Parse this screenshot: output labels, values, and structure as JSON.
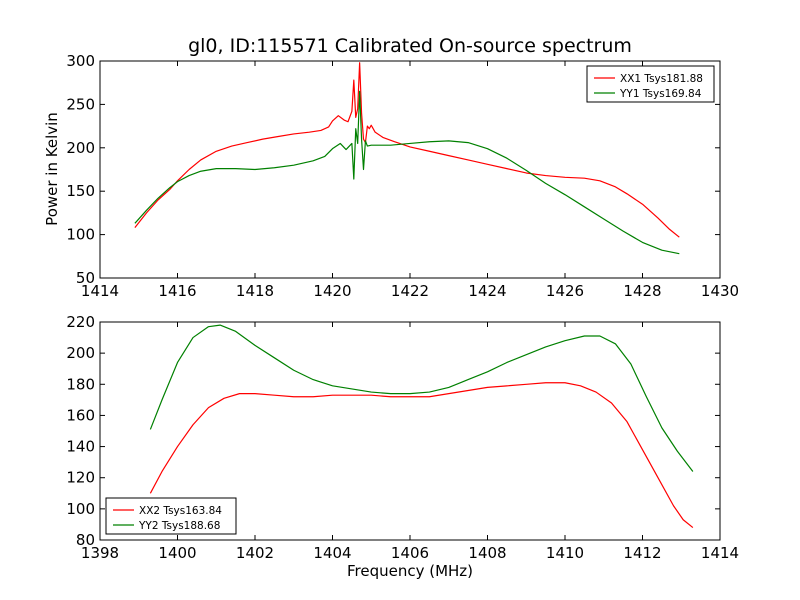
{
  "chart_data": [
    {
      "type": "line",
      "title": "gl0, ID:115571 Calibrated On-source spectrum",
      "xlabel": "",
      "ylabel": "Power in Kelvin",
      "xlim": [
        1414,
        1430
      ],
      "ylim": [
        50,
        300
      ],
      "xticks": [
        "1414",
        "1416",
        "1418",
        "1420",
        "1422",
        "1424",
        "1426",
        "1428",
        "1430"
      ],
      "yticks": [
        "50",
        "100",
        "150",
        "200",
        "250",
        "300"
      ],
      "legend_position": "top-right",
      "grid": false,
      "series": [
        {
          "name": "XX1 Tsys181.88",
          "color": "#ff0000",
          "x": [
            1414.9,
            1415.2,
            1415.5,
            1415.8,
            1416.0,
            1416.3,
            1416.6,
            1417.0,
            1417.4,
            1417.8,
            1418.2,
            1418.6,
            1419.0,
            1419.4,
            1419.7,
            1419.9,
            1420.0,
            1420.15,
            1420.3,
            1420.4,
            1420.5,
            1420.55,
            1420.6,
            1420.65,
            1420.7,
            1420.75,
            1420.8,
            1420.85,
            1420.9,
            1420.95,
            1421.0,
            1421.1,
            1421.3,
            1421.6,
            1422.0,
            1422.5,
            1423.0,
            1423.5,
            1424.0,
            1424.5,
            1425.0,
            1425.5,
            1426.0,
            1426.5,
            1426.9,
            1427.3,
            1427.6,
            1428.0,
            1428.4,
            1428.7,
            1428.95
          ],
          "values": [
            108,
            125,
            140,
            152,
            162,
            175,
            186,
            196,
            202,
            206,
            210,
            213,
            216,
            218,
            220,
            224,
            231,
            237,
            232,
            230,
            242,
            278,
            235,
            245,
            298,
            240,
            210,
            206,
            225,
            222,
            226,
            218,
            212,
            207,
            201,
            196,
            191,
            186,
            181,
            176,
            171,
            168,
            166,
            165,
            162,
            155,
            147,
            135,
            119,
            106,
            97
          ]
        },
        {
          "name": "YY1 Tsys169.84",
          "color": "#008000",
          "x": [
            1414.9,
            1415.2,
            1415.5,
            1415.8,
            1416.0,
            1416.3,
            1416.6,
            1417.0,
            1417.5,
            1418.0,
            1418.5,
            1419.0,
            1419.5,
            1419.8,
            1420.0,
            1420.2,
            1420.35,
            1420.5,
            1420.55,
            1420.6,
            1420.65,
            1420.7,
            1420.75,
            1420.8,
            1420.85,
            1420.9,
            1421.0,
            1421.5,
            1422.0,
            1422.5,
            1423.0,
            1423.5,
            1424.0,
            1424.5,
            1425.0,
            1425.5,
            1426.0,
            1426.5,
            1427.0,
            1427.5,
            1428.0,
            1428.5,
            1428.95
          ],
          "values": [
            113,
            128,
            142,
            154,
            161,
            168,
            173,
            176,
            176,
            175,
            177,
            180,
            185,
            190,
            199,
            205,
            198,
            205,
            164,
            222,
            205,
            265,
            210,
            175,
            208,
            202,
            203,
            203,
            205,
            207,
            208,
            206,
            199,
            188,
            174,
            159,
            146,
            132,
            118,
            104,
            91,
            82,
            78
          ]
        }
      ]
    },
    {
      "type": "line",
      "title": "",
      "xlabel": "Frequency (MHz)",
      "ylabel": "",
      "xlim": [
        1398,
        1414
      ],
      "ylim": [
        80,
        220
      ],
      "xticks": [
        "1398",
        "1400",
        "1402",
        "1404",
        "1406",
        "1408",
        "1410",
        "1412",
        "1414"
      ],
      "yticks": [
        "80",
        "100",
        "120",
        "140",
        "160",
        "180",
        "200",
        "220"
      ],
      "legend_position": "bottom-left",
      "grid": false,
      "series": [
        {
          "name": "XX2 Tsys163.84",
          "color": "#ff0000",
          "x": [
            1399.3,
            1399.6,
            1400.0,
            1400.4,
            1400.8,
            1401.2,
            1401.6,
            1402.0,
            1402.5,
            1403.0,
            1403.5,
            1404.0,
            1404.5,
            1405.0,
            1405.5,
            1406.0,
            1406.5,
            1407.0,
            1407.5,
            1408.0,
            1408.5,
            1409.0,
            1409.5,
            1410.0,
            1410.4,
            1410.8,
            1411.2,
            1411.6,
            1412.0,
            1412.4,
            1412.8,
            1413.05,
            1413.3
          ],
          "values": [
            110,
            124,
            140,
            154,
            165,
            171,
            174,
            174,
            173,
            172,
            172,
            173,
            173,
            173,
            172,
            172,
            172,
            174,
            176,
            178,
            179,
            180,
            181,
            181,
            179,
            175,
            168,
            156,
            138,
            120,
            102,
            93,
            88
          ]
        },
        {
          "name": "YY2 Tsys188.68",
          "color": "#008000",
          "x": [
            1399.3,
            1399.6,
            1400.0,
            1400.4,
            1400.8,
            1401.1,
            1401.5,
            1402.0,
            1402.5,
            1403.0,
            1403.5,
            1404.0,
            1404.5,
            1405.0,
            1405.5,
            1406.0,
            1406.5,
            1407.0,
            1407.5,
            1408.0,
            1408.5,
            1409.0,
            1409.5,
            1410.0,
            1410.5,
            1410.9,
            1411.3,
            1411.7,
            1412.1,
            1412.5,
            1412.9,
            1413.3
          ],
          "values": [
            151,
            170,
            194,
            210,
            217,
            218,
            214,
            205,
            197,
            189,
            183,
            179,
            177,
            175,
            174,
            174,
            175,
            178,
            183,
            188,
            194,
            199,
            204,
            208,
            211,
            211,
            206,
            193,
            172,
            152,
            137,
            124
          ]
        }
      ]
    }
  ]
}
